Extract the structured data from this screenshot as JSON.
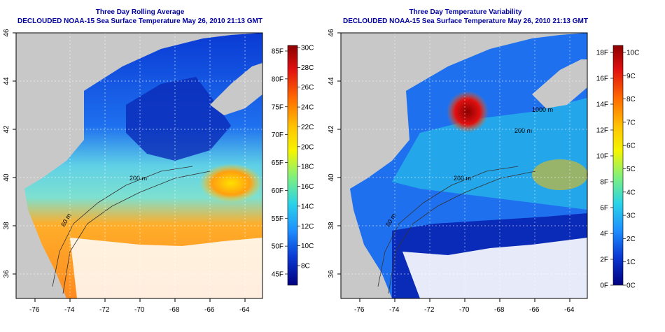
{
  "left_panel": {
    "title": "Three Day Rolling Average",
    "subtitle": "DECLOUDED NOAA-15 Sea Surface Temperature May 26, 2010 21:13 GMT",
    "x_ticks": [
      "-76",
      "-74",
      "-72",
      "-70",
      "-68",
      "-66",
      "-64"
    ],
    "y_ticks": [
      "36",
      "38",
      "40",
      "42",
      "44",
      "46"
    ],
    "contour_labels": [
      "200 m",
      "60 m"
    ],
    "colorbar": {
      "fahrenheit": [
        "85F",
        "80F",
        "75F",
        "70F",
        "65F",
        "60F",
        "55F",
        "50F",
        "45F"
      ],
      "celsius": [
        "30C",
        "28C",
        "26C",
        "24C",
        "22C",
        "20C",
        "18C",
        "16C",
        "14C",
        "12C",
        "10C",
        "8C"
      ],
      "colors": [
        "#8b0000",
        "#e01010",
        "#ff6a00",
        "#ffc400",
        "#f5f500",
        "#7ef07e",
        "#29d3e8",
        "#1e90ff",
        "#0a3ad4",
        "#000080"
      ]
    }
  },
  "right_panel": {
    "title": "Three Day Temperature Variability",
    "subtitle": "DECLOUDED NOAA-15 Sea Surface Temperature May 26, 2010 21:13 GMT",
    "x_ticks": [
      "-76",
      "-74",
      "-72",
      "-70",
      "-68",
      "-66",
      "-64"
    ],
    "y_ticks": [
      "36",
      "38",
      "40",
      "42",
      "44",
      "46"
    ],
    "contour_labels": [
      "200 m",
      "60 m",
      "200 m",
      "1000 m"
    ],
    "colorbar": {
      "fahrenheit": [
        "18F",
        "16F",
        "14F",
        "12F",
        "10F",
        "8F",
        "6F",
        "4F",
        "2F",
        "0F"
      ],
      "celsius": [
        "10C",
        "9C",
        "8C",
        "7C",
        "6C",
        "5C",
        "4C",
        "3C",
        "2C",
        "1C",
        "0C"
      ],
      "colors": [
        "#8b0000",
        "#e01010",
        "#ff6a00",
        "#ffc400",
        "#f5f500",
        "#7ef07e",
        "#29d3e8",
        "#1e90ff",
        "#0a3ad4",
        "#000080"
      ]
    }
  }
}
